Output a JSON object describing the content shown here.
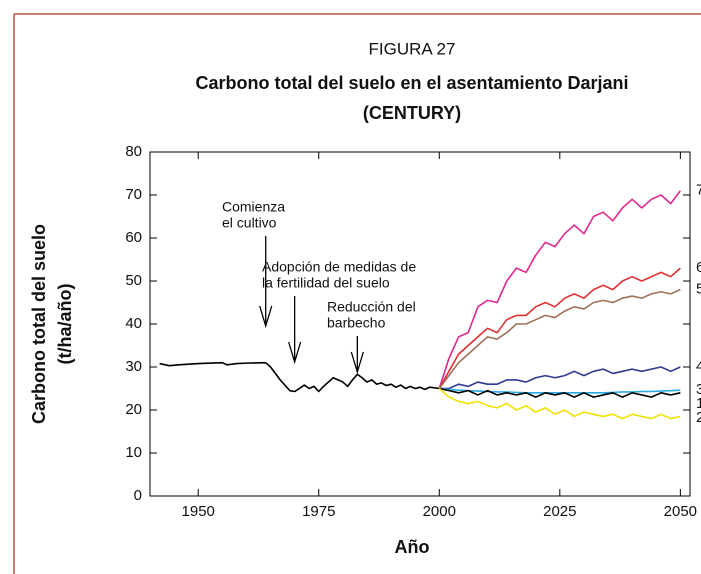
{
  "chart_data": {
    "type": "line",
    "label": "FIGURA 27",
    "title": [
      "Carbono total del suelo en el asentamiento Darjani",
      "(CENTURY)"
    ],
    "x_label": "Año",
    "y_label": [
      "Carbono total del suelo",
      "(t/ha/año)"
    ],
    "xlim": [
      1940,
      2052
    ],
    "ylim": [
      0,
      80
    ],
    "xticks": [
      1950,
      1975,
      2000,
      2025,
      2050
    ],
    "yticks": [
      0,
      10,
      20,
      30,
      40,
      50,
      60,
      70,
      80
    ],
    "annotations": [
      {
        "lines": [
          "Comienza",
          "el cultivo"
        ],
        "x": 1964
      },
      {
        "lines": [
          "Adopción de medidas de",
          "la fertilidad del suelo"
        ],
        "x": 1970
      },
      {
        "lines": [
          "Reducción del",
          "barbecho"
        ],
        "x": 1983
      }
    ],
    "series": [
      {
        "color": "#000000",
        "x": [
          1942,
          1944,
          1946,
          1950,
          1955,
          1956,
          1958,
          1960,
          1964,
          1965,
          1967,
          1969,
          1970,
          1971,
          1972,
          1973,
          1974,
          1975,
          1976,
          1978,
          1979,
          1980,
          1981,
          1982,
          1983,
          1984,
          1985,
          1986,
          1987,
          1988,
          1989,
          1990,
          1991,
          1992,
          1993,
          1994,
          1995,
          1996,
          1997,
          1998,
          2000
        ],
        "values": [
          30.8,
          30.3,
          30.5,
          30.8,
          31,
          30.5,
          30.8,
          30.9,
          31,
          30,
          27,
          24.5,
          24.3,
          25,
          25.8,
          25,
          25.5,
          24.3,
          25.5,
          27.5,
          27,
          26.5,
          25.5,
          27,
          28.3,
          27.5,
          26.5,
          27,
          26,
          26.3,
          25.7,
          26,
          25.3,
          25.8,
          25,
          25.5,
          25,
          25.3,
          24.8,
          25.3,
          25
        ]
      },
      {
        "name": "7",
        "color": "#e0288f",
        "x": [
          2000,
          2002,
          2004,
          2006,
          2008,
          2010,
          2012,
          2014,
          2016,
          2018,
          2020,
          2022,
          2024,
          2026,
          2028,
          2030,
          2032,
          2034,
          2036,
          2038,
          2040,
          2042,
          2044,
          2046,
          2048,
          2050
        ],
        "values": [
          25,
          32,
          37,
          38,
          44,
          45.5,
          45,
          50,
          53,
          52,
          56,
          59,
          58,
          61,
          63,
          61,
          65,
          66,
          64,
          67,
          69,
          67,
          69,
          70,
          68,
          71
        ]
      },
      {
        "name": "6",
        "color": "#e03030",
        "x": [
          2000,
          2002,
          2004,
          2006,
          2008,
          2010,
          2012,
          2014,
          2016,
          2018,
          2020,
          2022,
          2024,
          2026,
          2028,
          2030,
          2032,
          2034,
          2036,
          2038,
          2040,
          2042,
          2044,
          2046,
          2048,
          2050
        ],
        "values": [
          25,
          29,
          33,
          35,
          37,
          39,
          38,
          41,
          42,
          42,
          44,
          45,
          44,
          46,
          47,
          46,
          48,
          49,
          48,
          50,
          51,
          50,
          51,
          52,
          51,
          53
        ]
      },
      {
        "name": "5",
        "color": "#a0705a",
        "x": [
          2000,
          2002,
          2004,
          2006,
          2008,
          2010,
          2012,
          2014,
          2016,
          2018,
          2020,
          2022,
          2024,
          2026,
          2028,
          2030,
          2032,
          2034,
          2036,
          2038,
          2040,
          2042,
          2044,
          2046,
          2048,
          2050
        ],
        "values": [
          25,
          28,
          31,
          33,
          35,
          37,
          36.5,
          38,
          40,
          40,
          41,
          42,
          41.5,
          43,
          44,
          43.5,
          45,
          45.5,
          45,
          46,
          46.5,
          46,
          47,
          47.5,
          47,
          48
        ]
      },
      {
        "name": "4",
        "color": "#2b3990",
        "x": [
          2000,
          2002,
          2004,
          2006,
          2008,
          2010,
          2012,
          2014,
          2016,
          2018,
          2020,
          2022,
          2024,
          2026,
          2028,
          2030,
          2032,
          2034,
          2036,
          2038,
          2040,
          2042,
          2044,
          2046,
          2048,
          2050
        ],
        "values": [
          25,
          25,
          26,
          25.5,
          26.5,
          26,
          26,
          27,
          27,
          26.5,
          27.5,
          28,
          27.5,
          28,
          29,
          28,
          29,
          29.5,
          28.5,
          29,
          29.5,
          29,
          29.5,
          30,
          29,
          30
        ]
      },
      {
        "name": "3",
        "color": "#29abe2",
        "x": [
          2000,
          2002,
          2004,
          2006,
          2008,
          2010,
          2012,
          2014,
          2016,
          2018,
          2020,
          2022,
          2024,
          2026,
          2028,
          2030,
          2032,
          2034,
          2036,
          2038,
          2040,
          2042,
          2044,
          2046,
          2048,
          2050
        ],
        "values": [
          25,
          24.8,
          24.6,
          24.5,
          24.4,
          24.3,
          24.2,
          24.2,
          24.1,
          24,
          24,
          24,
          24,
          24,
          24,
          24,
          24,
          24,
          24.1,
          24.2,
          24.2,
          24.3,
          24.3,
          24.4,
          24.5,
          24.6
        ]
      },
      {
        "name": "1",
        "color": "#000000",
        "x": [
          2000,
          2002,
          2004,
          2006,
          2008,
          2010,
          2012,
          2014,
          2016,
          2018,
          2020,
          2022,
          2024,
          2026,
          2028,
          2030,
          2032,
          2034,
          2036,
          2038,
          2040,
          2042,
          2044,
          2046,
          2048,
          2050
        ],
        "values": [
          25,
          24.5,
          24,
          24.5,
          23.5,
          24.5,
          23.5,
          24,
          23.5,
          24,
          23,
          24,
          23.5,
          24,
          23,
          24,
          23,
          23.5,
          24,
          23,
          24,
          23.5,
          23,
          24,
          23.5,
          24
        ]
      },
      {
        "name": "2",
        "color": "#f2e000",
        "x": [
          2000,
          2002,
          2004,
          2006,
          2008,
          2010,
          2012,
          2014,
          2016,
          2018,
          2020,
          2022,
          2024,
          2026,
          2028,
          2030,
          2032,
          2034,
          2036,
          2038,
          2040,
          2042,
          2044,
          2046,
          2048,
          2050
        ],
        "values": [
          25,
          23,
          22,
          21.5,
          22,
          21,
          20.5,
          21.5,
          20,
          21,
          19.5,
          20.5,
          19,
          20,
          18.5,
          19.5,
          19,
          18.5,
          19,
          18,
          19,
          18.5,
          18,
          19,
          18,
          18.5
        ]
      }
    ]
  }
}
